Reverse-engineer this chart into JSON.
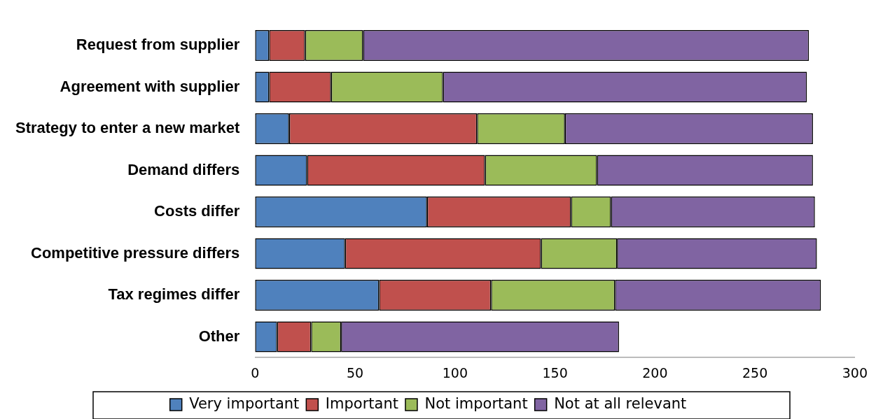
{
  "chart_data": {
    "type": "bar",
    "orientation": "horizontal",
    "stacked": true,
    "categories": [
      "Request from supplier",
      "Agreement with supplier",
      "Strategy to enter a new market",
      "Demand differs",
      "Costs differ",
      "Competitive pressure differs",
      "Tax regimes differ",
      "Other"
    ],
    "series": [
      {
        "name": "Very important",
        "color": "#4f81bd",
        "values": [
          7,
          7,
          17,
          26,
          86,
          45,
          62,
          11
        ]
      },
      {
        "name": "Important",
        "color": "#c0504d",
        "values": [
          18,
          31,
          94,
          89,
          72,
          98,
          56,
          17
        ]
      },
      {
        "name": "Not important",
        "color": "#9bbb59",
        "values": [
          29,
          56,
          44,
          56,
          20,
          38,
          62,
          15
        ]
      },
      {
        "name": "Not at all relevant",
        "color": "#8064a2",
        "values": [
          223,
          182,
          124,
          108,
          102,
          100,
          103,
          139
        ]
      }
    ],
    "xlim": [
      0,
      300
    ],
    "xticks": [
      0,
      50,
      100,
      150,
      200,
      250,
      300
    ],
    "grid": false,
    "legend": "bottom"
  }
}
